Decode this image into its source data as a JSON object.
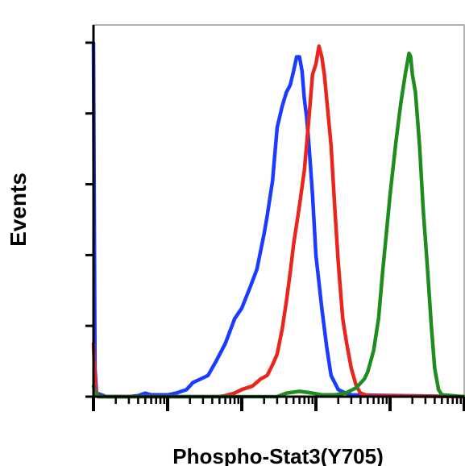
{
  "chart_data": {
    "type": "line",
    "title": "",
    "xlabel": "Phospho-Stat3(Y705)",
    "ylabel": "Events",
    "x_scale": "log",
    "xlim": [
      1,
      100000
    ],
    "ylim": [
      0,
      105
    ],
    "grid": false,
    "legend": "none",
    "series": [
      {
        "color": "#1a3cff",
        "points": [
          [
            1.0,
            100
          ],
          [
            1.02,
            60
          ],
          [
            1.05,
            8
          ],
          [
            1.1,
            1
          ],
          [
            1.5,
            0
          ],
          [
            3,
            0
          ],
          [
            4,
            0.3
          ],
          [
            5,
            1
          ],
          [
            6,
            0.5
          ],
          [
            8,
            0.5
          ],
          [
            10,
            0.5
          ],
          [
            13,
            1
          ],
          [
            18,
            2
          ],
          [
            22,
            4
          ],
          [
            28,
            5
          ],
          [
            35,
            6
          ],
          [
            45,
            10
          ],
          [
            60,
            15
          ],
          [
            80,
            22
          ],
          [
            100,
            25
          ],
          [
            130,
            31
          ],
          [
            160,
            36
          ],
          [
            200,
            46
          ],
          [
            220,
            51
          ],
          [
            260,
            61
          ],
          [
            300,
            76
          ],
          [
            350,
            82
          ],
          [
            400,
            86
          ],
          [
            450,
            88
          ],
          [
            500,
            92
          ],
          [
            550,
            96
          ],
          [
            600,
            96
          ],
          [
            650,
            92
          ],
          [
            700,
            84
          ],
          [
            750,
            79
          ],
          [
            800,
            72
          ],
          [
            900,
            57
          ],
          [
            1000,
            40
          ],
          [
            1200,
            25
          ],
          [
            1400,
            14
          ],
          [
            1600,
            6
          ],
          [
            2000,
            2
          ],
          [
            2500,
            1
          ],
          [
            3000,
            0.5
          ],
          [
            100000,
            0
          ]
        ]
      },
      {
        "color": "#e8261c",
        "points": [
          [
            1.0,
            15
          ],
          [
            1.03,
            8
          ],
          [
            1.07,
            2
          ],
          [
            1.15,
            0
          ],
          [
            50,
            0
          ],
          [
            60,
            0.3
          ],
          [
            80,
            1
          ],
          [
            100,
            2
          ],
          [
            140,
            3
          ],
          [
            180,
            5
          ],
          [
            220,
            6
          ],
          [
            260,
            9
          ],
          [
            300,
            12
          ],
          [
            350,
            19
          ],
          [
            400,
            27
          ],
          [
            450,
            35
          ],
          [
            500,
            43
          ],
          [
            600,
            54
          ],
          [
            700,
            64
          ],
          [
            800,
            78
          ],
          [
            900,
            91
          ],
          [
            1000,
            94
          ],
          [
            1100,
            99
          ],
          [
            1200,
            96
          ],
          [
            1300,
            91
          ],
          [
            1400,
            84
          ],
          [
            1600,
            71
          ],
          [
            1800,
            53
          ],
          [
            2000,
            38
          ],
          [
            2300,
            22
          ],
          [
            2600,
            15
          ],
          [
            3000,
            8
          ],
          [
            3500,
            3
          ],
          [
            4000,
            1
          ],
          [
            5000,
            0.3
          ],
          [
            100000,
            0
          ]
        ]
      },
      {
        "color": "#1e8c1e",
        "points": [
          [
            1.0,
            3
          ],
          [
            1.05,
            1
          ],
          [
            1.2,
            0
          ],
          [
            300,
            0
          ],
          [
            400,
            1
          ],
          [
            600,
            1.5
          ],
          [
            900,
            1
          ],
          [
            1200,
            0.5
          ],
          [
            1800,
            0.5
          ],
          [
            2500,
            1
          ],
          [
            3500,
            2.5
          ],
          [
            4500,
            5
          ],
          [
            5000,
            7
          ],
          [
            6000,
            13
          ],
          [
            7000,
            22
          ],
          [
            8000,
            36
          ],
          [
            9000,
            47
          ],
          [
            10000,
            57
          ],
          [
            12000,
            72
          ],
          [
            14000,
            83
          ],
          [
            16000,
            91
          ],
          [
            18000,
            97
          ],
          [
            19000,
            96
          ],
          [
            20000,
            91
          ],
          [
            22000,
            86
          ],
          [
            25000,
            71
          ],
          [
            28000,
            53
          ],
          [
            32000,
            36
          ],
          [
            36000,
            20
          ],
          [
            40000,
            8
          ],
          [
            45000,
            2
          ],
          [
            50000,
            0.5
          ],
          [
            100000,
            0
          ]
        ]
      }
    ]
  }
}
